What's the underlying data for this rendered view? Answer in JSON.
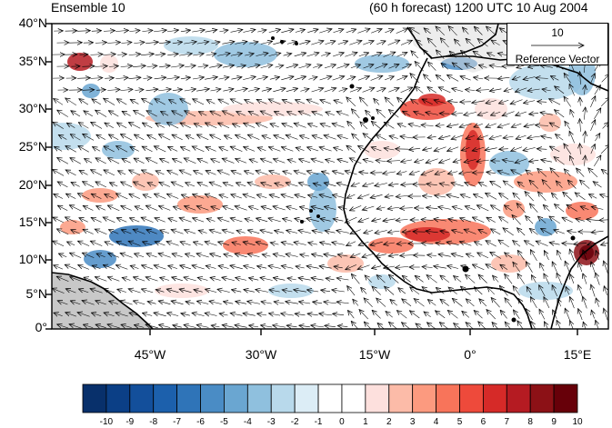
{
  "header": {
    "left_title": "Ensemble 10",
    "right_title": "(60 h forecast) 1200 UTC 10 Aug 2004"
  },
  "map": {
    "latitude_labels": [
      "40°N",
      "35°N",
      "30°N",
      "25°N",
      "20°N",
      "15°N",
      "10°N",
      "5°N",
      "0°"
    ],
    "longitude_labels": [
      "45°W",
      "30°W",
      "15°W",
      "0°",
      "15°E"
    ],
    "land_color": "#c8c8c8",
    "coast_color": "#000000"
  },
  "reference_vector": {
    "magnitude": "10",
    "label": "Reference Vector"
  },
  "colorbar": {
    "labels": [
      "-10",
      "-9",
      "-8",
      "-7",
      "-6",
      "-5",
      "-4",
      "-3",
      "-2",
      "-1",
      "0",
      "1",
      "2",
      "3",
      "4",
      "5",
      "6",
      "7",
      "8",
      "9",
      "10"
    ],
    "colors": [
      "#08306b",
      "#0b3f86",
      "#134f9b",
      "#1c60ac",
      "#2f74b8",
      "#4a8cc5",
      "#6aa6d1",
      "#8fc0de",
      "#b8d9eb",
      "#dcedf6",
      "#ffffff",
      "#ffffff",
      "#fde0dd",
      "#fcbba8",
      "#fc9a7f",
      "#f8745a",
      "#ee4a3b",
      "#d62a28",
      "#b51b22",
      "#8c1116",
      "#670009"
    ]
  }
}
